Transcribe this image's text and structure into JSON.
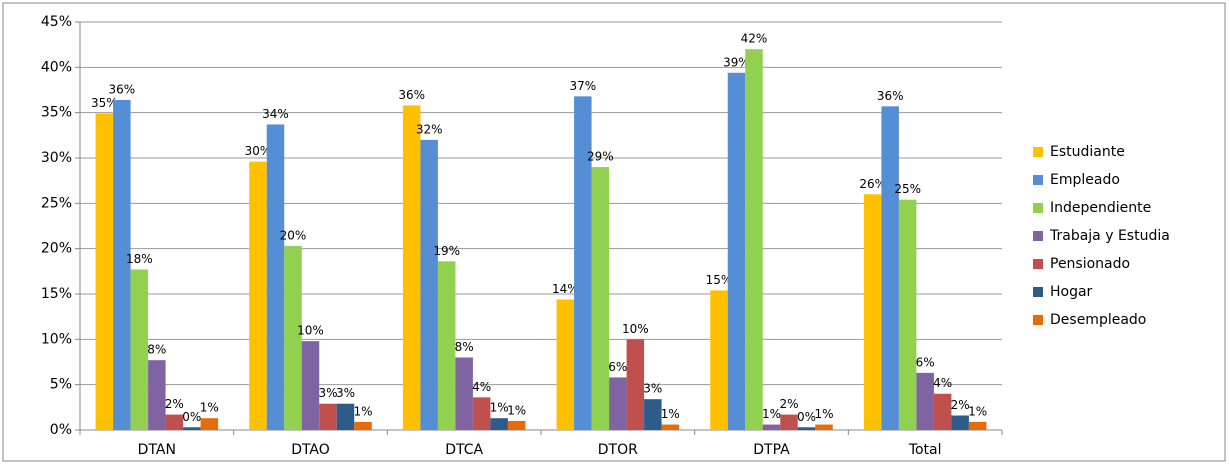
{
  "chart_data": {
    "type": "bar",
    "categories": [
      "DTAN",
      "DTAO",
      "DTCA",
      "DTOR",
      "DTPA",
      "Total"
    ],
    "series": [
      {
        "name": "Estudiante",
        "color": "#FFC000",
        "values": [
          34.9,
          29.6,
          35.8,
          14.4,
          15.4,
          26.0
        ],
        "value_labels": [
          "35%",
          "30%",
          "36%",
          "14%",
          "15%",
          "26%"
        ]
      },
      {
        "name": "Empleado",
        "color": "#558ED5",
        "values": [
          36.4,
          33.7,
          32.0,
          36.8,
          39.4,
          35.7
        ],
        "value_labels": [
          "36%",
          "34%",
          "32%",
          "37%",
          "39%",
          "36%"
        ]
      },
      {
        "name": "Independiente",
        "color": "#92D050",
        "values": [
          17.7,
          20.3,
          18.6,
          29.0,
          42.0,
          25.4
        ],
        "value_labels": [
          "18%",
          "20%",
          "19%",
          "29%",
          "42%",
          "25%"
        ]
      },
      {
        "name": "Trabaja y Estudia",
        "color": "#8064A2",
        "values": [
          7.7,
          9.8,
          8.0,
          5.8,
          0.6,
          6.3
        ],
        "value_labels": [
          "8%",
          "10%",
          "8%",
          "6%",
          "1%",
          "6%"
        ]
      },
      {
        "name": "Pensionado",
        "color": "#C0504D",
        "values": [
          1.7,
          2.9,
          3.6,
          10.0,
          1.7,
          4.0
        ],
        "value_labels": [
          "2%",
          "3%",
          "4%",
          "10%",
          "2%",
          "4%"
        ]
      },
      {
        "name": "Hogar",
        "color": "#2E5C8A",
        "values": [
          0.3,
          2.9,
          1.3,
          3.4,
          0.3,
          1.6
        ],
        "value_labels": [
          "0%",
          "3%",
          "1%",
          "3%",
          "0%",
          "2%"
        ]
      },
      {
        "name": "Desempleado",
        "color": "#E46C0A",
        "values": [
          1.3,
          0.9,
          1.0,
          0.6,
          0.6,
          0.9
        ],
        "value_labels": [
          "1%",
          "1%",
          "1%",
          "1%",
          "1%",
          "1%"
        ]
      }
    ],
    "ylim": [
      0,
      45
    ],
    "yticks": [
      {
        "value": 0,
        "label": "0%"
      },
      {
        "value": 5,
        "label": "5%"
      },
      {
        "value": 10,
        "label": "10%"
      },
      {
        "value": 15,
        "label": "15%"
      },
      {
        "value": 20,
        "label": "20%"
      },
      {
        "value": 25,
        "label": "25%"
      },
      {
        "value": 30,
        "label": "30%"
      },
      {
        "value": 35,
        "label": "35%"
      },
      {
        "value": 40,
        "label": "40%"
      },
      {
        "value": 45,
        "label": "45%"
      }
    ],
    "grid": true,
    "legend": "right"
  }
}
